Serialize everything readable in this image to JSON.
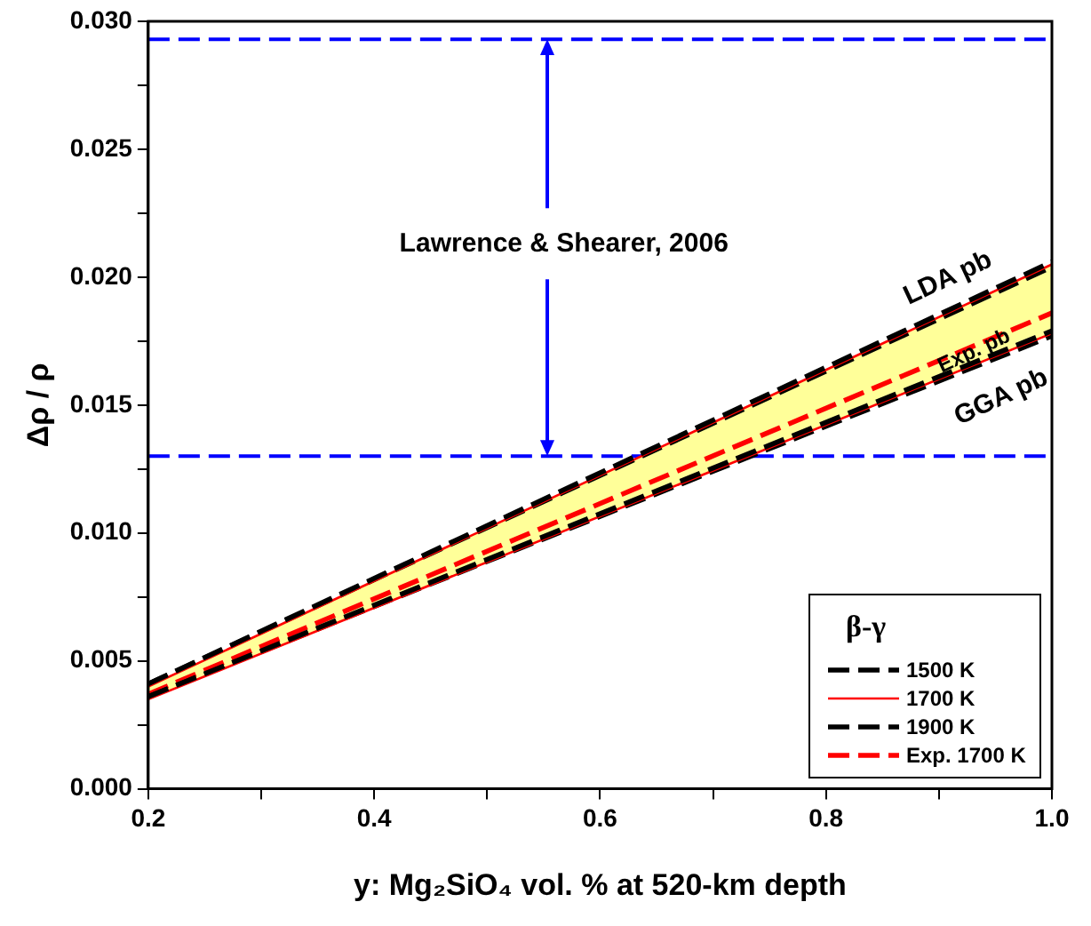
{
  "chart_data": {
    "type": "line",
    "xlabel": "y: Mg₂SiO₄ vol. % at 520-km depth",
    "ylabel": "Δρ / ρ",
    "legend_title": "β-γ",
    "legend": "bottom right",
    "grid": false,
    "marker": "none",
    "x": [
      0.2,
      1.0
    ],
    "xlim": [
      0.2,
      1.0
    ],
    "xticks": [
      {
        "value": 0.2,
        "label": "0.2"
      },
      {
        "value": 0.3,
        "label": null
      },
      {
        "value": 0.4,
        "label": "0.4"
      },
      {
        "value": 0.5,
        "label": null
      },
      {
        "value": 0.6,
        "label": "0.6"
      },
      {
        "value": 0.7,
        "label": null
      },
      {
        "value": 0.8,
        "label": "0.8"
      },
      {
        "value": 0.9,
        "label": null
      },
      {
        "value": 1.0,
        "label": "1.0"
      }
    ],
    "ylim": [
      0,
      0.03
    ],
    "yticks": [
      {
        "value": 0,
        "label": "0.000"
      },
      {
        "value": 0.0025,
        "label": null
      },
      {
        "value": 0.005,
        "label": "0.005"
      },
      {
        "value": 0.0075,
        "label": null
      },
      {
        "value": 0.01,
        "label": "0.010"
      },
      {
        "value": 0.0125,
        "label": null
      },
      {
        "value": 0.015,
        "label": "0.015"
      },
      {
        "value": 0.0175,
        "label": null
      },
      {
        "value": 0.02,
        "label": "0.020"
      },
      {
        "value": 0.0225,
        "label": null
      },
      {
        "value": 0.025,
        "label": "0.025"
      },
      {
        "value": 0.0275,
        "label": null
      },
      {
        "value": 0.03,
        "label": "0.030"
      }
    ],
    "series": [
      {
        "name": "1500 K",
        "color": "#000000",
        "line_style": "dashed",
        "values": [
          0.0041,
          0.0206
        ]
      },
      {
        "color": "#000000",
        "line_style": "dashed",
        "values": [
          0.0036,
          0.0179
        ]
      },
      {
        "name": "1700 K",
        "color": "#ff0000",
        "line_style": "solid",
        "values": [
          0.004,
          0.0205
        ]
      },
      {
        "color": "#ff0000",
        "line_style": "solid",
        "values": [
          0.0035,
          0.0178
        ]
      },
      {
        "name": "1900 K",
        "color": "#000000",
        "line_style": "dashed",
        "values": [
          0.0041,
          0.0204
        ]
      },
      {
        "color": "#000000",
        "line_style": "dashed",
        "values": [
          0.0036,
          0.0177
        ]
      },
      {
        "name": "Exp. 1700 K",
        "color": "#ff0000",
        "line_style": "dashed",
        "values": [
          0.0037,
          0.0186
        ],
        "lower": [
          0.0035,
          0.0178
        ],
        "upper": [
          0.004,
          0.0205
        ]
      }
    ],
    "ref_lines": [
      {
        "axis": "y",
        "value": 0.0293,
        "color": "#0000ff",
        "line_style": "dashed"
      },
      {
        "axis": "y",
        "value": 0.013,
        "color": "#0000ff",
        "line_style": "dashed"
      }
    ],
    "annotations": [
      "Lawrence & Shearer, 2006",
      "LDA pb",
      "Exp. pb",
      "GGA pb"
    ]
  }
}
